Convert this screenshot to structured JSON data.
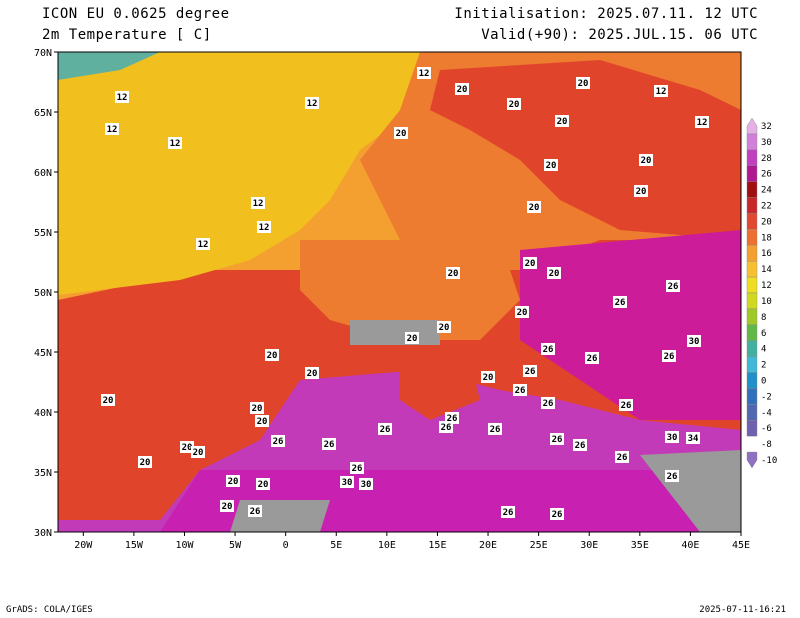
{
  "header": {
    "model": "ICON EU 0.0625 degree",
    "field": "2m Temperature [ C]",
    "init": "Initialisation: 2025.07.11. 12 UTC",
    "valid": "Valid(+90): 2025.JUL.15. 06 UTC"
  },
  "footer": {
    "credit": "GrADS: COLA/IGES",
    "timestamp": "2025-07-11-16:21"
  },
  "axes": {
    "lat_labels": [
      "70N",
      "65N",
      "60N",
      "55N",
      "50N",
      "45N",
      "40N",
      "35N",
      "30N"
    ],
    "lon_labels": [
      "20W",
      "15W",
      "10W",
      "5W",
      "0",
      "5E",
      "10E",
      "15E",
      "20E",
      "25E",
      "30E",
      "35E",
      "40E",
      "45E"
    ]
  },
  "colorbar": {
    "levels": [
      "32",
      "30",
      "28",
      "26",
      "24",
      "22",
      "20",
      "18",
      "16",
      "14",
      "12",
      "10",
      "8",
      "6",
      "4",
      "2",
      "0",
      "-2",
      "-4",
      "-6",
      "-8",
      "-10"
    ],
    "colors": [
      "#e6b0e6",
      "#d080d8",
      "#c040c0",
      "#b01890",
      "#a01010",
      "#c82828",
      "#e04830",
      "#ee7030",
      "#f4a030",
      "#f6c030",
      "#eedd20",
      "#d0d820",
      "#a0c828",
      "#60b848",
      "#40b0a0",
      "#40b8d8",
      "#2090c8",
      "#3070b8",
      "#5068b0",
      "#7060b0",
      "#9070c0"
    ]
  },
  "map": {
    "colors": {
      "sea_north": "#f2c01e",
      "atlantic": "#e0442a",
      "med": "#c23ab8",
      "africa": "#c820b0",
      "land_warm": "#ee7c30",
      "land_mid": "#f4a030",
      "east": "#cc1c9a",
      "mountain": "#9a9a9a",
      "cold": "#60b0a0"
    },
    "contour_labels": [
      "12",
      "12",
      "12",
      "12",
      "12",
      "12",
      "12",
      "12",
      "12",
      "12",
      "20",
      "20",
      "20",
      "20",
      "20",
      "20",
      "20",
      "20",
      "20",
      "20",
      "20",
      "20",
      "20",
      "20",
      "20",
      "20",
      "20",
      "20",
      "20",
      "20",
      "20",
      "20",
      "20",
      "20",
      "20",
      "20",
      "20",
      "26",
      "26",
      "26",
      "26",
      "26",
      "26",
      "26",
      "26",
      "26",
      "26",
      "26",
      "26",
      "26",
      "26",
      "26",
      "26",
      "26",
      "26",
      "26",
      "26",
      "26",
      "26",
      "26",
      "30",
      "30",
      "30",
      "30",
      "34"
    ]
  }
}
